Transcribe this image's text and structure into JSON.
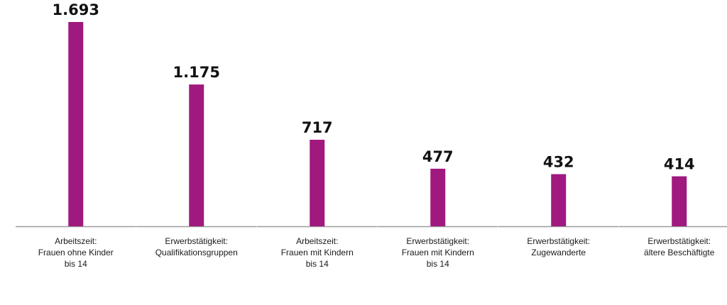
{
  "chart_data": {
    "type": "bar",
    "categories": [
      [
        "Arbeitszeit:",
        "Frauen ohne Kinder",
        "bis 14"
      ],
      [
        "Erwerbstätigkeit:",
        "Qualifikationsgruppen"
      ],
      [
        "Arbeitszeit:",
        "Frauen mit Kindern",
        "bis 14"
      ],
      [
        "Erwerbstätigkeit:",
        "Frauen mit Kindern",
        "bis 14"
      ],
      [
        "Erwerbstätigkeit:",
        "Zugewanderte"
      ],
      [
        "Erwerbstätigkeit:",
        "ältere Beschäftigte"
      ]
    ],
    "values": [
      1693,
      1175,
      717,
      477,
      432,
      414
    ],
    "value_labels": [
      "1.693",
      "1.175",
      "717",
      "477",
      "432",
      "414"
    ],
    "title": "",
    "xlabel": "",
    "ylabel": "",
    "ylim": [
      0,
      1800
    ],
    "grid": false,
    "legend": "none",
    "bar_color": "#a0197e",
    "axis_color": "#9a9a9a"
  }
}
